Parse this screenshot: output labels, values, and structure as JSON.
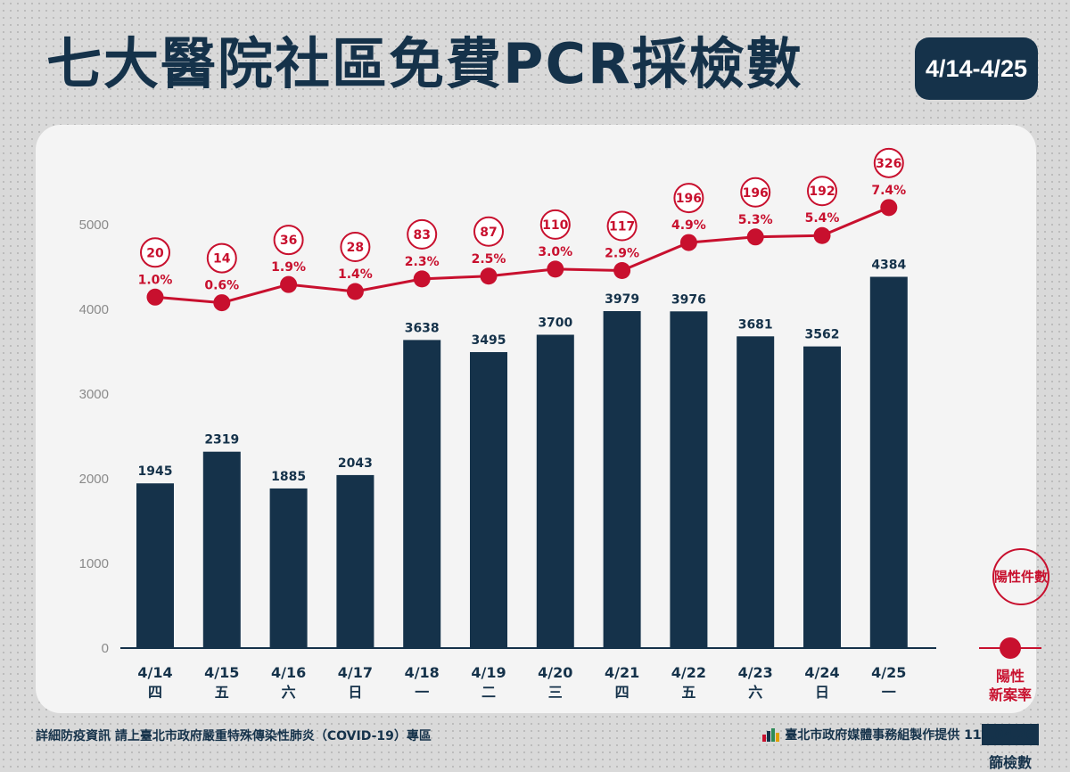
{
  "header": {
    "title": "七大醫院社區免費PCR採檢數",
    "date_range": "4/14-4/25"
  },
  "chart_data": {
    "type": "bar",
    "categories": [
      "4/14",
      "4/15",
      "4/16",
      "4/17",
      "4/18",
      "4/19",
      "4/20",
      "4/21",
      "4/22",
      "4/23",
      "4/24",
      "4/25"
    ],
    "weekdays": [
      "四",
      "五",
      "六",
      "日",
      "一",
      "二",
      "三",
      "四",
      "五",
      "六",
      "日",
      "一"
    ],
    "ylim": [
      0,
      5000
    ],
    "yticks": [
      0,
      1000,
      2000,
      3000,
      4000,
      5000
    ],
    "series": [
      {
        "name": "篩檢數",
        "type": "bar",
        "color": "#15324a",
        "values": [
          1945,
          2319,
          1885,
          2043,
          3638,
          3495,
          3700,
          3979,
          3976,
          3681,
          3562,
          4384
        ]
      },
      {
        "name": "陽性新案率",
        "type": "line",
        "color": "#c8102e",
        "values": [
          1.0,
          0.6,
          1.9,
          1.4,
          2.3,
          2.5,
          3.0,
          2.9,
          4.9,
          5.3,
          5.4,
          7.4
        ],
        "labels": [
          "1.0%",
          "0.6%",
          "1.9%",
          "1.4%",
          "2.3%",
          "2.5%",
          "3.0%",
          "2.9%",
          "4.9%",
          "5.3%",
          "5.4%",
          "7.4%"
        ]
      },
      {
        "name": "陽性件數",
        "type": "badge",
        "color": "#c8102e",
        "values": [
          20,
          14,
          36,
          28,
          83,
          87,
          110,
          117,
          196,
          196,
          192,
          326
        ]
      }
    ],
    "legend_position": "right",
    "grid": false
  },
  "legend": {
    "positive_count": "陽性件數",
    "positive_rate_line1": "陽性",
    "positive_rate_line2": "新案率",
    "screen_count": "篩檢數"
  },
  "footer": {
    "left": "詳細防疫資訊 請上臺北市政府嚴重特殊傳染性肺炎（COVID-19）專區",
    "right": "臺北市政府媒體事務組製作提供 111.04.26",
    "logo": "taipei-logo-icon"
  }
}
